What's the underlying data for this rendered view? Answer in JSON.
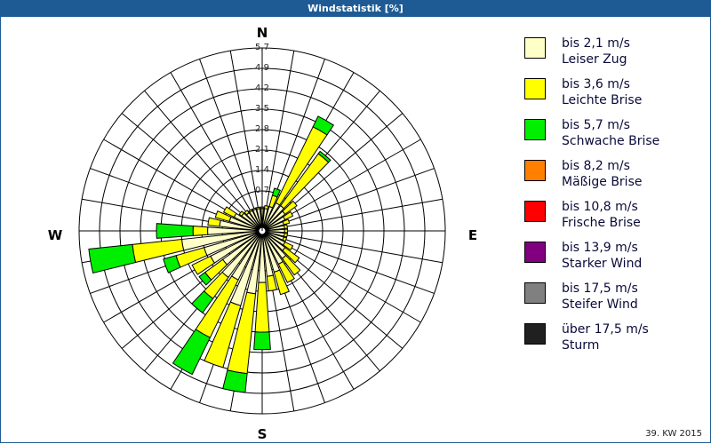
{
  "title": "Windstatistik [%]",
  "footer": "39. KW 2015",
  "chart_data": {
    "type": "windrose",
    "title": "Windstatistik [%]",
    "compass": {
      "N": "N",
      "E": "E",
      "S": "S",
      "W": "W"
    },
    "radial_ticks": [
      "0,7",
      "1,4",
      "2,1",
      "2,8",
      "3,5",
      "4,2",
      "4,9",
      "5,7"
    ],
    "rmax": 5.6,
    "directions_deg": [
      0,
      10,
      20,
      30,
      40,
      50,
      60,
      70,
      80,
      90,
      100,
      110,
      120,
      130,
      140,
      150,
      160,
      170,
      180,
      190,
      200,
      210,
      220,
      230,
      240,
      250,
      260,
      270,
      280,
      290,
      300,
      310,
      320,
      330,
      340,
      350
    ],
    "series": [
      {
        "name": "bis 2,1 m/s",
        "desc": "Leiser Zug",
        "color": "#ffffc8",
        "values": [
          0.1,
          0.1,
          0.2,
          0.4,
          0.4,
          0.3,
          0.2,
          0.1,
          0.1,
          0.1,
          0.1,
          0.1,
          0.2,
          0.3,
          0.5,
          0.6,
          0.8,
          0.9,
          1.1,
          1.5,
          2.0,
          1.2,
          1.3,
          1.0,
          1.3,
          1.4,
          2.1,
          1.2,
          0.8,
          0.5,
          0.4,
          0.2,
          0.1,
          0.1,
          0.1,
          0.1
        ]
      },
      {
        "name": "bis 3,6 m/s",
        "desc": "Leichte Brise",
        "color": "#ffff00",
        "values": [
          0.05,
          0.1,
          0.4,
          2.9,
          2.2,
          0.5,
          0.3,
          0.2,
          0.1,
          0.1,
          0.1,
          0.1,
          0.3,
          0.6,
          0.7,
          0.7,
          0.8,
          0.5,
          1.7,
          2.75,
          2.2,
          2.2,
          0.9,
          0.75,
          0.7,
          1.0,
          1.7,
          0.5,
          0.4,
          0.5,
          0.4,
          0.1,
          0.1,
          0.05,
          0.05,
          0.05
        ]
      },
      {
        "name": "bis 5,7 m/s",
        "desc": "Schwache Brise",
        "color": "#00ee00",
        "values": [
          0,
          0,
          0.25,
          0.4,
          0.1,
          0,
          0,
          0,
          0,
          0,
          0,
          0,
          0,
          0,
          0,
          0,
          0,
          0,
          0.6,
          0.65,
          0,
          1.4,
          0.6,
          0.25,
          0,
          0.45,
          1.5,
          1.25,
          0,
          0,
          0,
          0,
          0,
          0,
          0,
          0
        ]
      },
      {
        "name": "bis 8,2 m/s",
        "desc": "Mäßige Brise",
        "color": "#ff8000",
        "values": []
      },
      {
        "name": "bis 10,8 m/s",
        "desc": "Frische Brise",
        "color": "#ff0000",
        "values": []
      },
      {
        "name": "bis 13,9 m/s",
        "desc": "Starker Wind",
        "color": "#800080",
        "values": []
      },
      {
        "name": "bis 17,5 m/s",
        "desc": "Steifer Wind",
        "color": "#808080",
        "values": []
      },
      {
        "name": "über 17,5 m/s",
        "desc": "Sturm",
        "color": "#202020",
        "values": []
      }
    ]
  }
}
